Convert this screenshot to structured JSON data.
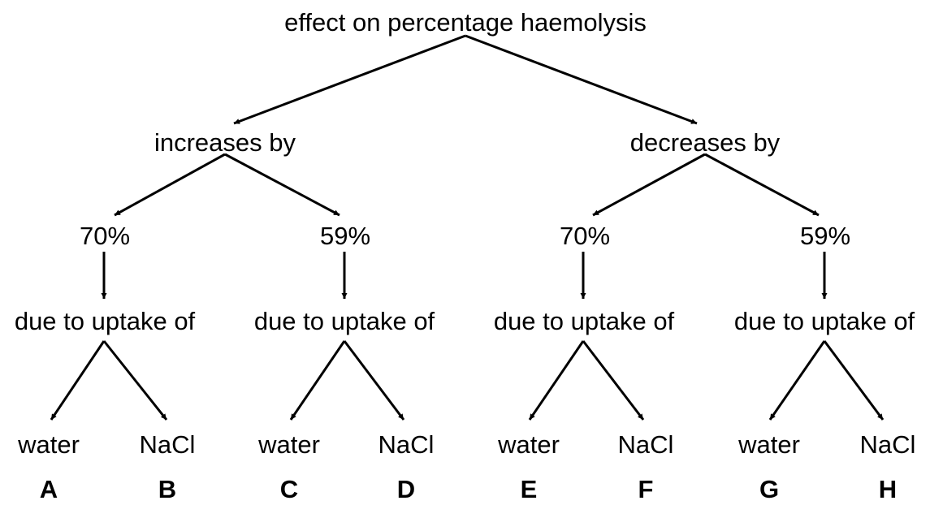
{
  "root": "effect on percentage haemolysis",
  "branches": [
    {
      "label": "increases by",
      "amounts": [
        {
          "value": "70%",
          "reason": "due to uptake of",
          "options": [
            {
              "substance": "water",
              "letter": "A"
            },
            {
              "substance": "NaCl",
              "letter": "B"
            }
          ]
        },
        {
          "value": "59%",
          "reason": "due to uptake of",
          "options": [
            {
              "substance": "water",
              "letter": "C"
            },
            {
              "substance": "NaCl",
              "letter": "D"
            }
          ]
        }
      ]
    },
    {
      "label": "decreases by",
      "amounts": [
        {
          "value": "70%",
          "reason": "due to uptake of",
          "options": [
            {
              "substance": "water",
              "letter": "E"
            },
            {
              "substance": "NaCl",
              "letter": "F"
            }
          ]
        },
        {
          "value": "59%",
          "reason": "due to uptake of",
          "options": [
            {
              "substance": "water",
              "letter": "G"
            },
            {
              "substance": "NaCl",
              "letter": "H"
            }
          ]
        }
      ]
    }
  ]
}
